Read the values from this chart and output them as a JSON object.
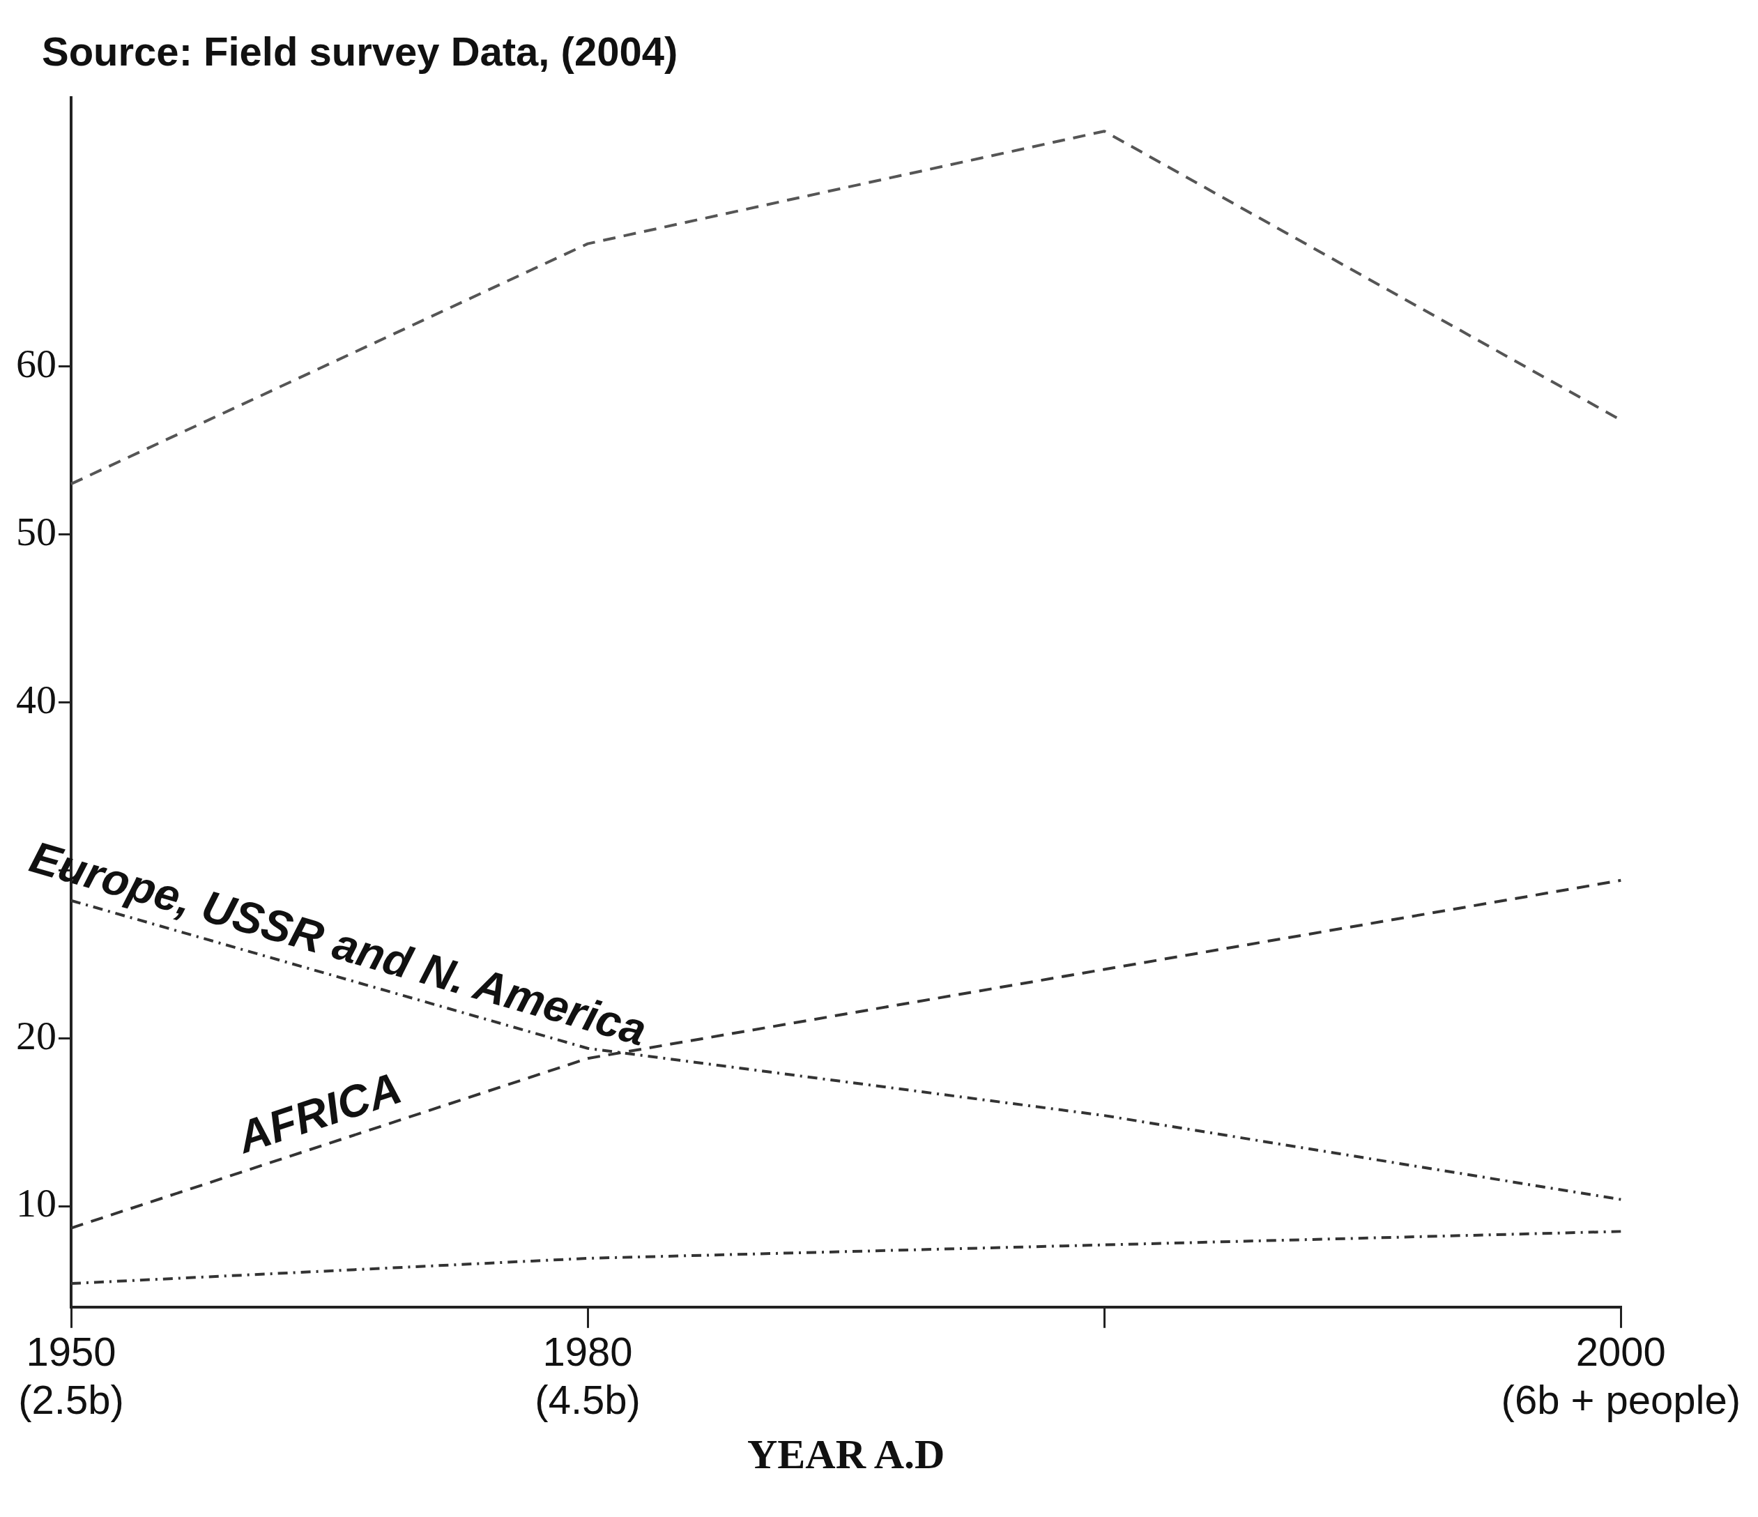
{
  "chart_data": {
    "type": "line",
    "xlabel": "YEAR A.D",
    "annotations": [
      "Source: Field survey Data, (2004)"
    ],
    "categories": [
      "1950\n(2.5b)",
      "1980\n(4.5b)",
      null,
      "2000\n(6b + people)"
    ],
    "series": [
      {
        "color": "#555555",
        "values": [
          53,
          67.3,
          74,
          56.8
        ],
        "line_style": "dashed"
      },
      {
        "name": "Europe, USSR and N. America",
        "color": "#333333",
        "values": [
          28.2,
          19.4,
          15.4,
          10.4
        ],
        "line_style": "dotted"
      },
      {
        "name": "AFRICA",
        "color": "#333333",
        "values": [
          8.7,
          18.8,
          24.1,
          29.4
        ],
        "line_style": "dashed"
      },
      {
        "color": "#333333",
        "values": [
          5.4,
          6.9,
          7.7,
          8.5
        ],
        "line_style": "dotted"
      }
    ],
    "ylim": [
      4,
      76
    ],
    "yticks": [
      10,
      20,
      {
        "value": 30,
        "label": null
      },
      40,
      50,
      60
    ],
    "grid": false,
    "legend": false,
    "marker": "none"
  }
}
